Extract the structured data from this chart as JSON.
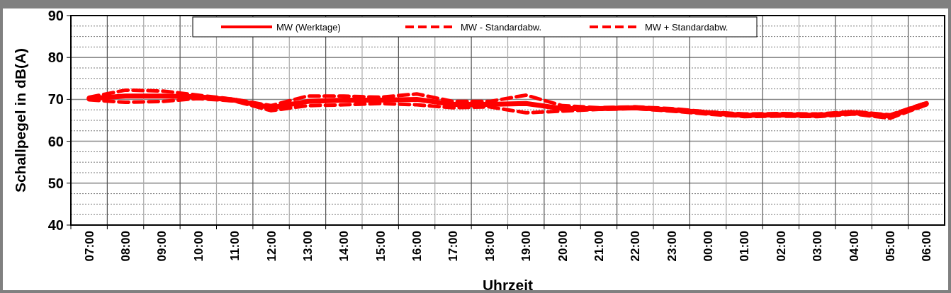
{
  "chart_data": {
    "type": "line",
    "xlabel": "Uhrzeit",
    "ylabel": "Schallpegel in dB(A)",
    "categories": [
      "07:00",
      "08:00",
      "09:00",
      "10:00",
      "11:00",
      "12:00",
      "13:00",
      "14:00",
      "15:00",
      "16:00",
      "17:00",
      "18:00",
      "19:00",
      "20:00",
      "21:00",
      "22:00",
      "23:00",
      "00:00",
      "01:00",
      "02:00",
      "03:00",
      "04:00",
      "05:00",
      "06:00"
    ],
    "series": [
      {
        "name": "MW (Werktage)",
        "color": "#ff0000",
        "line_style": "solid",
        "values": [
          70.2,
          70.8,
          70.8,
          70.6,
          69.8,
          68.0,
          69.5,
          69.8,
          69.8,
          70.0,
          68.8,
          68.8,
          69.0,
          67.8,
          67.8,
          68.0,
          67.5,
          66.8,
          66.2,
          66.3,
          66.2,
          66.8,
          66.0,
          69.0
        ]
      },
      {
        "name": "MW - Standardabw.",
        "color": "#ff0000",
        "line_style": "dashed",
        "values": [
          69.9,
          69.3,
          69.5,
          70.2,
          69.6,
          67.3,
          68.5,
          68.7,
          69.0,
          68.7,
          68.0,
          68.2,
          66.8,
          67.2,
          67.6,
          67.8,
          67.2,
          66.5,
          65.9,
          66.0,
          65.9,
          66.5,
          65.5,
          68.7
        ]
      },
      {
        "name": "MW + Standardabw.",
        "color": "#ff0000",
        "line_style": "dashed",
        "values": [
          70.5,
          72.2,
          72.0,
          71.0,
          70.0,
          68.5,
          70.8,
          70.8,
          70.5,
          71.3,
          69.5,
          69.5,
          71.0,
          68.5,
          68.0,
          68.2,
          67.8,
          67.0,
          66.5,
          66.6,
          66.5,
          67.1,
          66.3,
          69.2
        ]
      }
    ],
    "ylim": [
      40,
      90
    ],
    "yticks": [
      40,
      {
        "value": 42.5,
        "label": null
      },
      {
        "value": 45,
        "label": null
      },
      {
        "value": 47.5,
        "label": null
      },
      50,
      {
        "value": 52.5,
        "label": null
      },
      {
        "value": 55,
        "label": null
      },
      {
        "value": 57.5,
        "label": null
      },
      60,
      {
        "value": 62.5,
        "label": null
      },
      {
        "value": 65,
        "label": null
      },
      {
        "value": 67.5,
        "label": null
      },
      70,
      {
        "value": 72.5,
        "label": null
      },
      {
        "value": 75,
        "label": null
      },
      {
        "value": 77.5,
        "label": null
      },
      80,
      {
        "value": 82.5,
        "label": null
      },
      {
        "value": 85,
        "label": null
      },
      {
        "value": 87.5,
        "label": null
      },
      90
    ],
    "grid": true,
    "legend": "top",
    "marker": "none"
  }
}
